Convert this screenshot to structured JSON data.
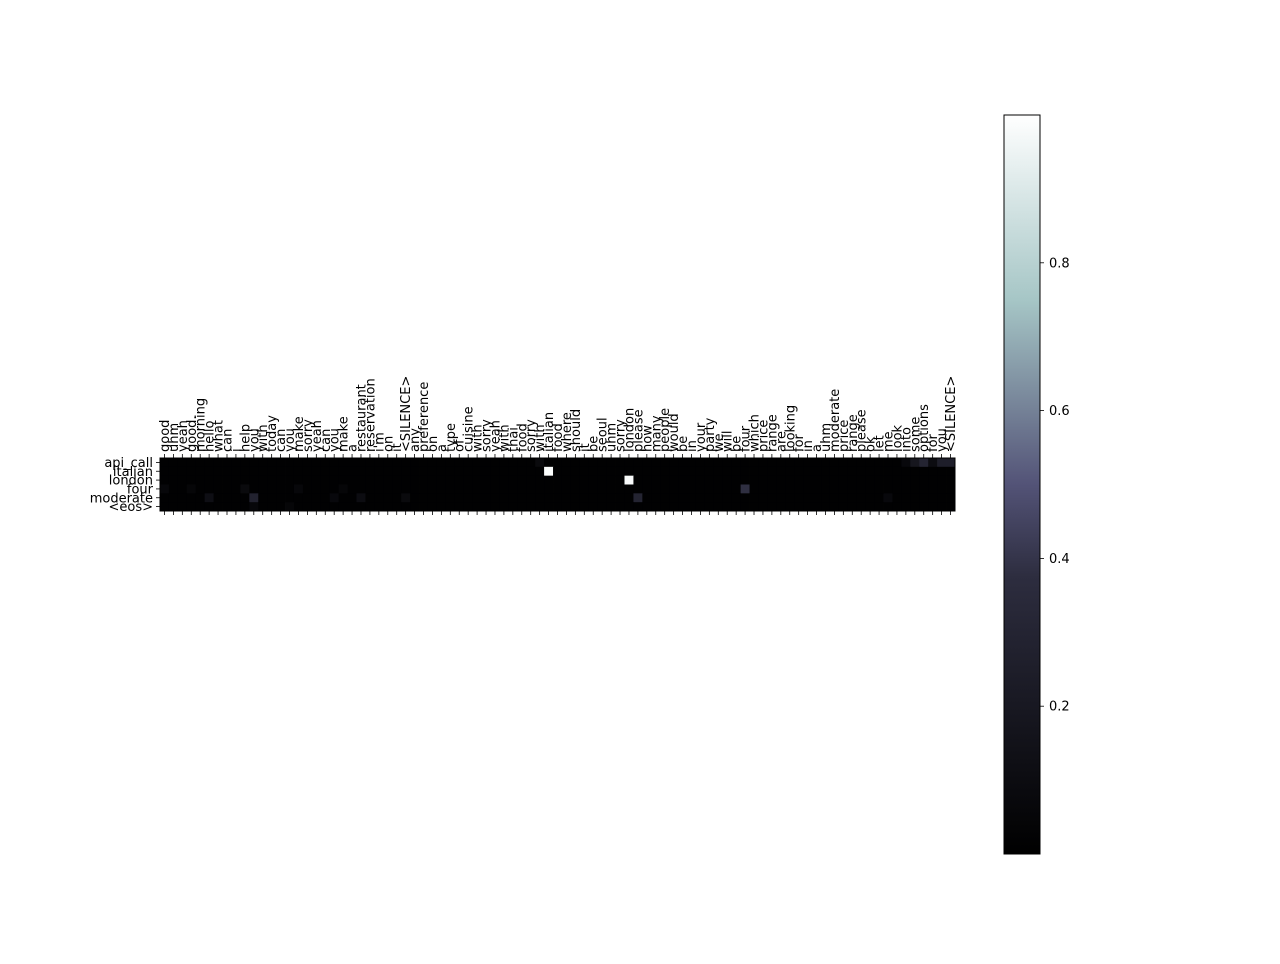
{
  "chart_data": {
    "type": "heatmap",
    "title": "",
    "xlabel": "",
    "ylabel": "",
    "x_labels": [
      "good",
      "uhm",
      "yeah",
      "good.",
      "morning",
      "hello",
      "what",
      "can",
      "i",
      "help",
      "you",
      "with",
      "today",
      "can",
      "you",
      "make",
      "sorry",
      "yeah",
      "can",
      "you",
      "make",
      "a",
      "restaurant",
      "reservation",
      "i'm",
      "on",
      "it",
      "<SILENCE>",
      "any",
      "preference",
      "on",
      "a",
      "type",
      "of",
      "cuisine",
      "with",
      "sorry",
      "yeah",
      "with",
      "thai",
      "food",
      "sorry",
      "with",
      "italian",
      "food",
      "where",
      "should",
      "it",
      "be",
      "seoul",
      "uhm",
      "sorry",
      "london",
      "please",
      "how",
      "many",
      "people",
      "would",
      "be",
      "in",
      "your",
      "party",
      "we",
      "will",
      "be",
      "four",
      "which",
      "price",
      "range",
      "are",
      "looking",
      "for",
      "in",
      "a",
      "uhm",
      "moderate",
      "price",
      "range",
      "please",
      "ok",
      "let",
      "me",
      "look",
      "into",
      "some",
      "options",
      "for",
      "you",
      "<SILENCE>"
    ],
    "y_labels": [
      "api_call",
      "italian",
      "london",
      "four",
      "moderate",
      "<eos>"
    ],
    "highlights": [
      {
        "row": 1,
        "col": 43,
        "value": 0.99
      },
      {
        "row": 2,
        "col": 52,
        "value": 0.98
      },
      {
        "row": 3,
        "col": 65,
        "value": 0.38
      },
      {
        "row": 4,
        "col": 53,
        "value": 0.3
      },
      {
        "row": 4,
        "col": 10,
        "value": 0.28
      },
      {
        "row": 4,
        "col": 5,
        "value": 0.12
      },
      {
        "row": 3,
        "col": 0,
        "value": 0.06
      },
      {
        "row": 3,
        "col": 3,
        "value": 0.05
      },
      {
        "row": 3,
        "col": 9,
        "value": 0.08
      },
      {
        "row": 3,
        "col": 15,
        "value": 0.06
      },
      {
        "row": 3,
        "col": 20,
        "value": 0.05
      },
      {
        "row": 4,
        "col": 19,
        "value": 0.07
      },
      {
        "row": 4,
        "col": 22,
        "value": 0.1
      },
      {
        "row": 4,
        "col": 27,
        "value": 0.08
      },
      {
        "row": 5,
        "col": 10,
        "value": 0.06
      },
      {
        "row": 5,
        "col": 14,
        "value": 0.05
      },
      {
        "row": 0,
        "col": 42,
        "value": 0.08
      },
      {
        "row": 0,
        "col": 84,
        "value": 0.18
      },
      {
        "row": 0,
        "col": 85,
        "value": 0.3
      },
      {
        "row": 0,
        "col": 86,
        "value": 0.1
      },
      {
        "row": 0,
        "col": 87,
        "value": 0.25
      },
      {
        "row": 0,
        "col": 88,
        "value": 0.25
      },
      {
        "row": 0,
        "col": 83,
        "value": 0.07
      },
      {
        "row": 4,
        "col": 81,
        "value": 0.07
      }
    ],
    "colormap": "bone",
    "colorbar": {
      "min": 0,
      "max": 1,
      "ticks": [
        0.2,
        0.4,
        0.6,
        0.8
      ]
    },
    "grid": false,
    "colors": {
      "low": "#000000",
      "mid": "#535377",
      "high_mid": "#a6c6c6",
      "high": "#ffffff"
    }
  }
}
